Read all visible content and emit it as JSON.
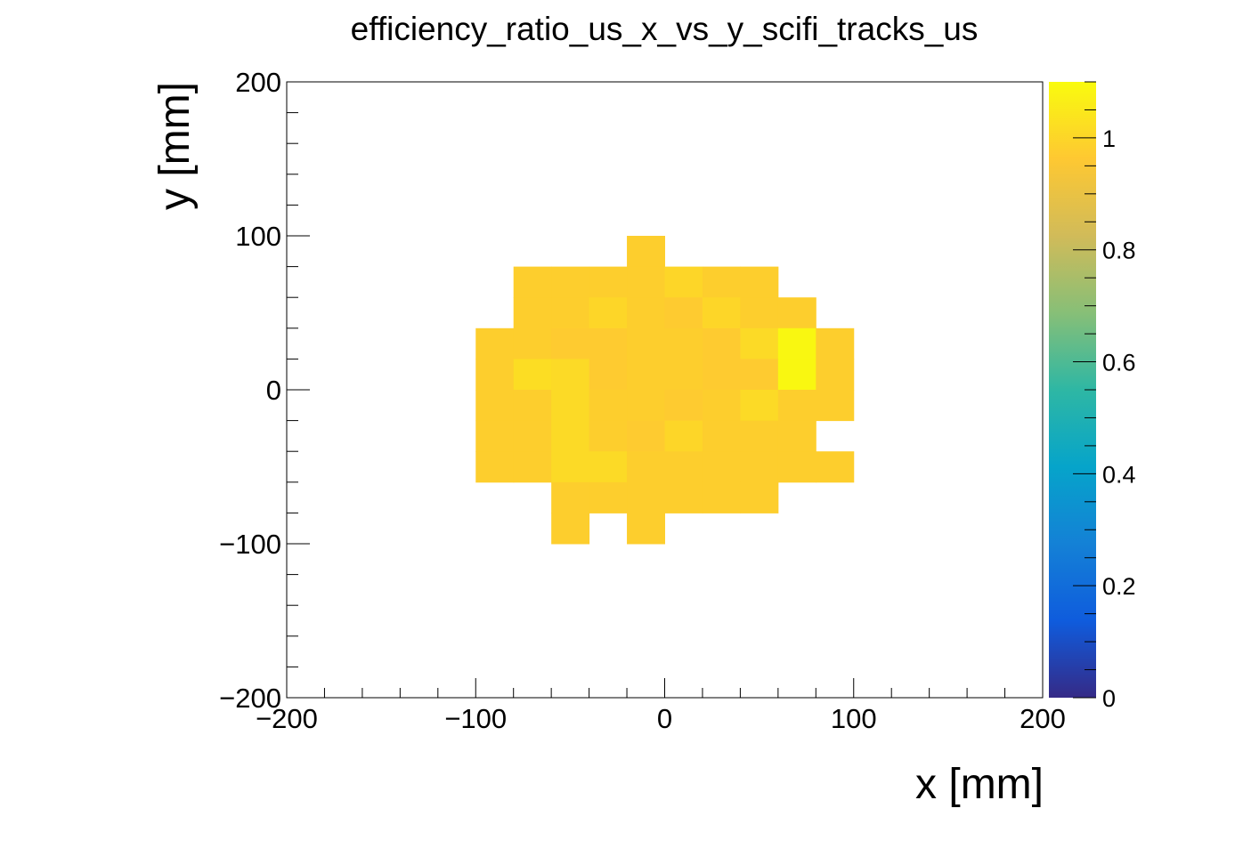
{
  "chart_data": {
    "type": "heatmap",
    "title": "efficiency_ratio_us_x_vs_y_scifi_tracks_us",
    "xlabel": "x [mm]",
    "ylabel": "y [mm]",
    "xlim": [
      -200,
      200
    ],
    "ylim": [
      -200,
      200
    ],
    "zlim": [
      0,
      1.1
    ],
    "bin_width": 20,
    "x_ticks": [
      -200,
      -100,
      0,
      100,
      200
    ],
    "y_ticks": [
      -200,
      -100,
      0,
      100,
      200
    ],
    "x_tick_labels": [
      "−200",
      "−100",
      "0",
      "100",
      "200"
    ],
    "y_tick_labels": [
      "−200",
      "−100",
      "0",
      "100",
      "200"
    ],
    "z_ticks": [
      0,
      0.2,
      0.4,
      0.6,
      0.8,
      1
    ],
    "z_tick_labels": [
      "0",
      "0.2",
      "0.4",
      "0.6",
      "0.8",
      "1"
    ],
    "colormap": [
      "#352a87",
      "#0f5cdd",
      "#1481d6",
      "#06a4ca",
      "#2eb7a4",
      "#87bf77",
      "#d1bb59",
      "#fec832",
      "#f9fb0e"
    ],
    "cells": [
      {
        "x": -10,
        "y": 90,
        "v": 0.98
      },
      {
        "x": -70,
        "y": 70,
        "v": 0.98
      },
      {
        "x": -50,
        "y": 70,
        "v": 0.98
      },
      {
        "x": -30,
        "y": 70,
        "v": 0.98
      },
      {
        "x": -10,
        "y": 70,
        "v": 0.98
      },
      {
        "x": 10,
        "y": 70,
        "v": 1.0
      },
      {
        "x": 30,
        "y": 70,
        "v": 0.98
      },
      {
        "x": 50,
        "y": 70,
        "v": 0.98
      },
      {
        "x": -70,
        "y": 50,
        "v": 0.98
      },
      {
        "x": -50,
        "y": 50,
        "v": 0.98
      },
      {
        "x": -30,
        "y": 50,
        "v": 1.0
      },
      {
        "x": -10,
        "y": 50,
        "v": 0.98
      },
      {
        "x": 10,
        "y": 50,
        "v": 0.97
      },
      {
        "x": 30,
        "y": 50,
        "v": 1.0
      },
      {
        "x": 50,
        "y": 50,
        "v": 0.98
      },
      {
        "x": 70,
        "y": 50,
        "v": 0.98
      },
      {
        "x": -90,
        "y": 30,
        "v": 0.98
      },
      {
        "x": -70,
        "y": 30,
        "v": 0.98
      },
      {
        "x": -50,
        "y": 30,
        "v": 0.97
      },
      {
        "x": -30,
        "y": 30,
        "v": 0.97
      },
      {
        "x": -10,
        "y": 30,
        "v": 0.98
      },
      {
        "x": 10,
        "y": 30,
        "v": 0.98
      },
      {
        "x": 30,
        "y": 30,
        "v": 0.97
      },
      {
        "x": 50,
        "y": 30,
        "v": 1.01
      },
      {
        "x": 70,
        "y": 30,
        "v": 1.09
      },
      {
        "x": 90,
        "y": 30,
        "v": 0.98
      },
      {
        "x": -90,
        "y": 10,
        "v": 0.98
      },
      {
        "x": -70,
        "y": 10,
        "v": 1.02
      },
      {
        "x": -50,
        "y": 10,
        "v": 1.01
      },
      {
        "x": -30,
        "y": 10,
        "v": 0.97
      },
      {
        "x": -10,
        "y": 10,
        "v": 0.98
      },
      {
        "x": 10,
        "y": 10,
        "v": 0.98
      },
      {
        "x": 30,
        "y": 10,
        "v": 0.97
      },
      {
        "x": 50,
        "y": 10,
        "v": 0.97
      },
      {
        "x": 70,
        "y": 10,
        "v": 1.09
      },
      {
        "x": 90,
        "y": 10,
        "v": 0.98
      },
      {
        "x": -90,
        "y": -10,
        "v": 0.98
      },
      {
        "x": -70,
        "y": -10,
        "v": 0.98
      },
      {
        "x": -50,
        "y": -10,
        "v": 1.01
      },
      {
        "x": -30,
        "y": -10,
        "v": 0.98
      },
      {
        "x": -10,
        "y": -10,
        "v": 0.98
      },
      {
        "x": 10,
        "y": -10,
        "v": 0.97
      },
      {
        "x": 30,
        "y": -10,
        "v": 0.98
      },
      {
        "x": 50,
        "y": -10,
        "v": 1.01
      },
      {
        "x": 70,
        "y": -10,
        "v": 0.98
      },
      {
        "x": 90,
        "y": -10,
        "v": 0.98
      },
      {
        "x": -90,
        "y": -30,
        "v": 0.98
      },
      {
        "x": -70,
        "y": -30,
        "v": 0.98
      },
      {
        "x": -50,
        "y": -30,
        "v": 1.01
      },
      {
        "x": -30,
        "y": -30,
        "v": 0.98
      },
      {
        "x": -10,
        "y": -30,
        "v": 0.97
      },
      {
        "x": 10,
        "y": -30,
        "v": 1.0
      },
      {
        "x": 30,
        "y": -30,
        "v": 0.98
      },
      {
        "x": 50,
        "y": -30,
        "v": 0.98
      },
      {
        "x": 70,
        "y": -30,
        "v": 0.98
      },
      {
        "x": -90,
        "y": -50,
        "v": 0.98
      },
      {
        "x": -70,
        "y": -50,
        "v": 0.98
      },
      {
        "x": -50,
        "y": -50,
        "v": 1.01
      },
      {
        "x": -30,
        "y": -50,
        "v": 1.01
      },
      {
        "x": -10,
        "y": -50,
        "v": 0.98
      },
      {
        "x": 10,
        "y": -50,
        "v": 0.98
      },
      {
        "x": 30,
        "y": -50,
        "v": 0.98
      },
      {
        "x": 50,
        "y": -50,
        "v": 0.98
      },
      {
        "x": 70,
        "y": -50,
        "v": 0.98
      },
      {
        "x": 90,
        "y": -50,
        "v": 0.98
      },
      {
        "x": -50,
        "y": -70,
        "v": 0.98
      },
      {
        "x": -30,
        "y": -70,
        "v": 0.98
      },
      {
        "x": -10,
        "y": -70,
        "v": 0.98
      },
      {
        "x": 10,
        "y": -70,
        "v": 0.98
      },
      {
        "x": 30,
        "y": -70,
        "v": 0.98
      },
      {
        "x": 50,
        "y": -70,
        "v": 0.98
      },
      {
        "x": -50,
        "y": -90,
        "v": 0.98
      },
      {
        "x": -10,
        "y": -90,
        "v": 0.98
      }
    ]
  }
}
